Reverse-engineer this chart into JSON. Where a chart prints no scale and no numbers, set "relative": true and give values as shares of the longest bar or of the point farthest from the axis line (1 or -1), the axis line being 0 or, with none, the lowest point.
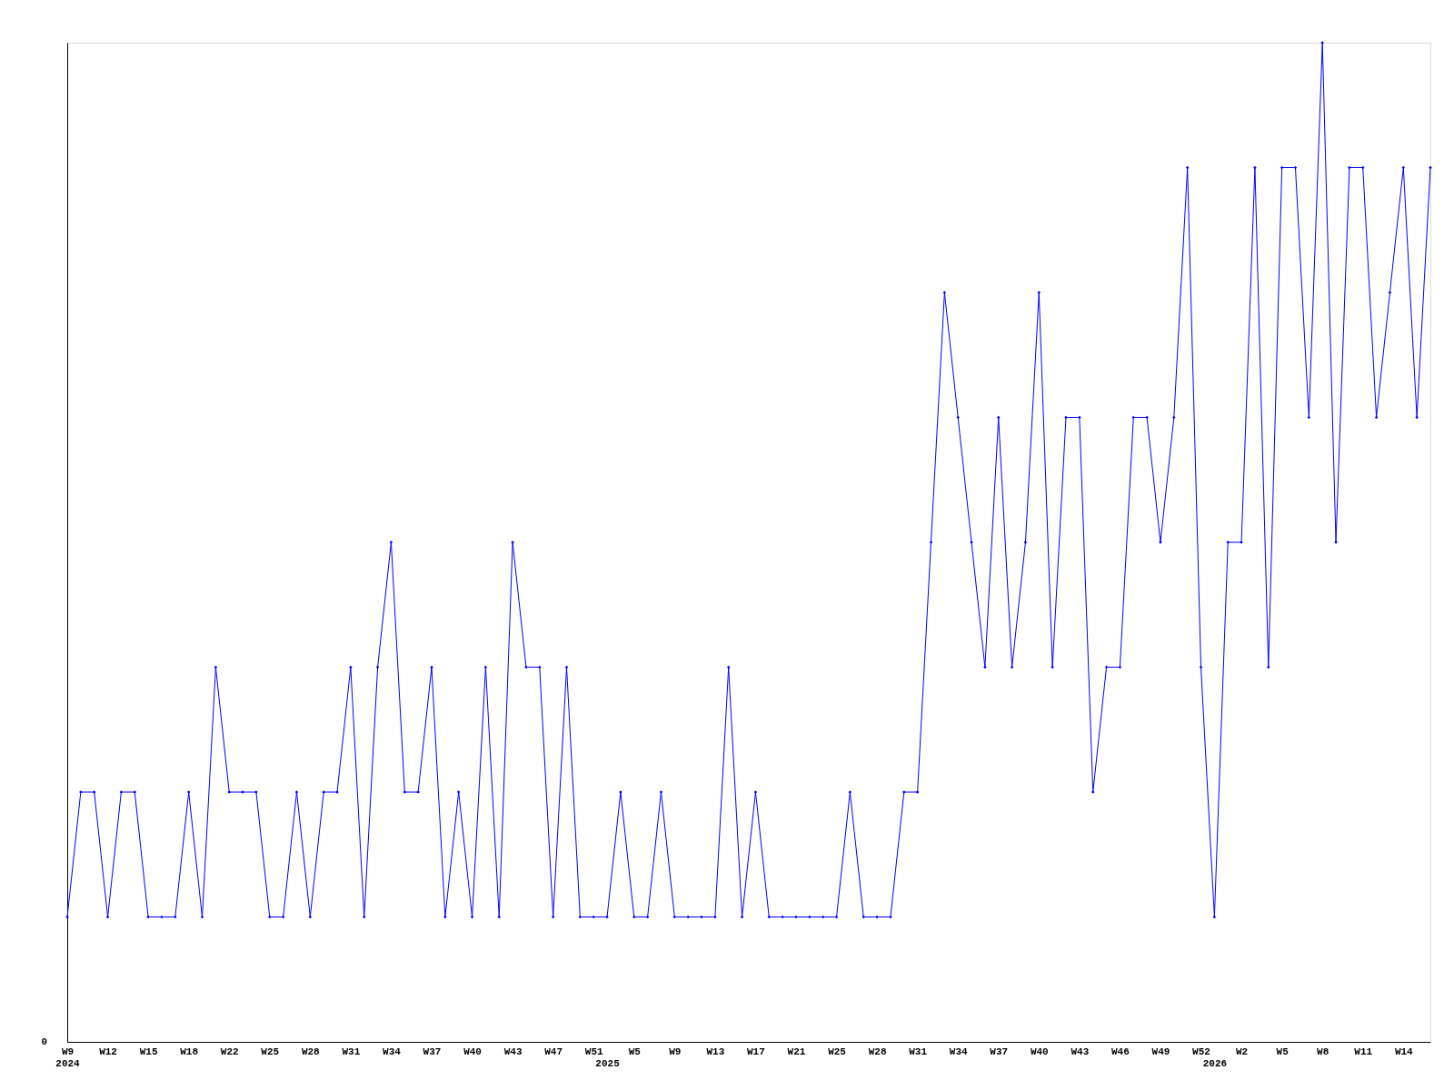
{
  "chart_data": {
    "type": "line",
    "relative": true,
    "marker": "diamond",
    "line_style": "solid",
    "grid": false,
    "categories": [
      "W9\n2024",
      null,
      null,
      "W12",
      null,
      null,
      "W15",
      null,
      null,
      "W18",
      null,
      null,
      "W22",
      null,
      null,
      "W25",
      null,
      null,
      "W28",
      null,
      null,
      "W31",
      null,
      null,
      "W34",
      null,
      null,
      "W37",
      null,
      null,
      "W40",
      null,
      null,
      "W43",
      null,
      null,
      "W47",
      null,
      null,
      "W51",
      "\n2025",
      null,
      "W5",
      null,
      null,
      "W9",
      null,
      null,
      "W13",
      null,
      null,
      "W17",
      null,
      null,
      "W21",
      null,
      null,
      "W25",
      null,
      null,
      "W28",
      null,
      null,
      "W31",
      null,
      null,
      "W34",
      null,
      null,
      "W37",
      null,
      null,
      "W40",
      null,
      null,
      "W43",
      null,
      null,
      "W46",
      null,
      null,
      "W49",
      null,
      null,
      "W52",
      "\n2026",
      null,
      "W2",
      null,
      null,
      "W5",
      null,
      null,
      "W8",
      null,
      null,
      "W11",
      null,
      null,
      "W14",
      null,
      null
    ],
    "series": [
      {
        "color": "#0000ff",
        "values": [
          0.125,
          0.25,
          0.25,
          0.125,
          0.25,
          0.25,
          0.125,
          0.125,
          0.125,
          0.25,
          0.125,
          0.375,
          0.25,
          0.25,
          0.25,
          0.125,
          0.125,
          0.25,
          0.125,
          0.25,
          0.25,
          0.375,
          0.125,
          0.375,
          0.5,
          0.25,
          0.25,
          0.375,
          0.125,
          0.25,
          0.125,
          0.375,
          0.125,
          0.5,
          0.375,
          0.375,
          0.125,
          0.375,
          0.125,
          0.125,
          0.125,
          0.25,
          0.125,
          0.125,
          0.25,
          0.125,
          0.125,
          0.125,
          0.125,
          0.375,
          0.125,
          0.25,
          0.125,
          0.125,
          0.125,
          0.125,
          0.125,
          0.125,
          0.25,
          0.125,
          0.125,
          0.125,
          0.25,
          0.25,
          0.5,
          0.75,
          0.625,
          0.5,
          0.375,
          0.625,
          0.375,
          0.5,
          0.75,
          0.375,
          0.625,
          0.625,
          0.25,
          0.375,
          0.375,
          0.625,
          0.625,
          0.5,
          0.625,
          0.875,
          0.375,
          0.125,
          0.5,
          0.5,
          0.875,
          0.375,
          0.875,
          0.875,
          0.625,
          1,
          0.5,
          0.875,
          0.875,
          0.625,
          0.75,
          0.875,
          0.625,
          0.875
        ]
      }
    ],
    "annotations": [
      "0"
    ]
  }
}
